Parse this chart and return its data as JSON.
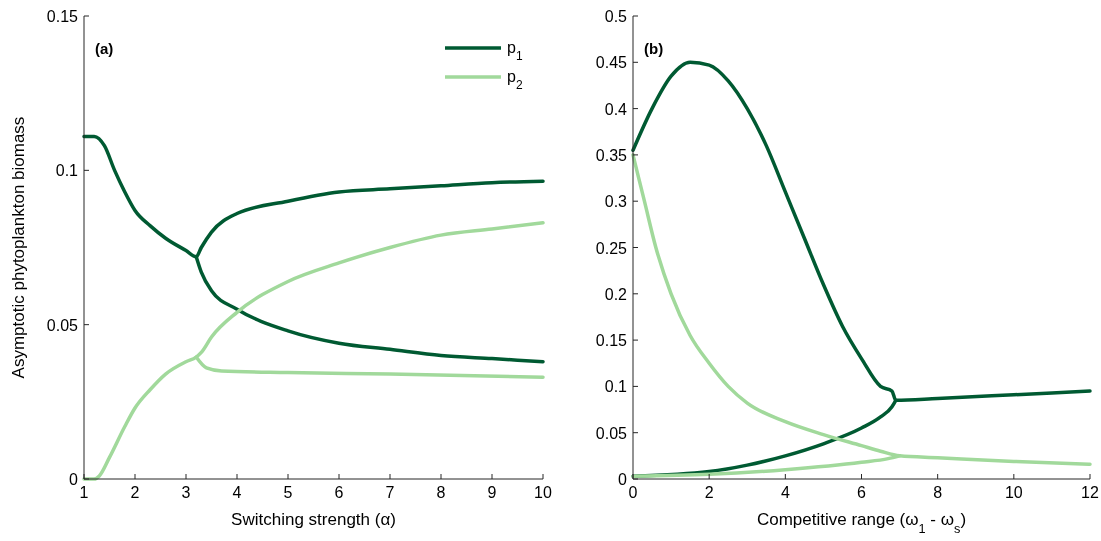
{
  "chart_data": [
    {
      "type": "line",
      "ylabel": "Asymptotic phytoplankton biomass",
      "xlabel": "Switching strength (α)",
      "annotations": [
        "(a)"
      ],
      "xlim": [
        1,
        10
      ],
      "xticks": [
        1,
        2,
        3,
        4,
        5,
        6,
        7,
        8,
        9,
        10
      ],
      "ylim": [
        0,
        0.15
      ],
      "yticks": [
        0,
        0.05,
        0.1,
        0.15
      ],
      "legend": "top right",
      "grid": false,
      "series": [
        {
          "name": "p$_{1}$",
          "color": "#005a32",
          "x": [
            1,
            1.2,
            1.4,
            1.6,
            1.8,
            2,
            2.3,
            2.6,
            3,
            3.2,
            3.3,
            3.5,
            4,
            5,
            6,
            7,
            8,
            9,
            10
          ],
          "values": [
            0.111,
            0.111,
            0.108,
            0.1,
            0.093,
            0.087,
            0.082,
            0.078,
            0.074,
            0.072,
            0.075,
            0.08,
            0.086,
            0.09,
            0.093,
            0.094,
            0.095,
            0.096,
            0.0965
          ]
        },
        {
          "color": "#005a32",
          "x": [
            3.2,
            3.3,
            3.5,
            4,
            5,
            6,
            7,
            8,
            9,
            10
          ],
          "values": [
            0.072,
            0.067,
            0.061,
            0.055,
            0.048,
            0.044,
            0.042,
            0.04,
            0.039,
            0.038
          ]
        },
        {
          "name": "p$_{2}$",
          "color": "#a1d99b",
          "x": [
            1,
            1.2,
            1.3,
            1.5,
            1.8,
            2,
            2.3,
            2.6,
            3,
            3.2,
            3.3,
            3.5,
            4,
            5,
            6,
            7,
            8,
            9,
            10
          ],
          "values": [
            0,
            0,
            0.001,
            0.007,
            0.017,
            0.023,
            0.029,
            0.034,
            0.038,
            0.0395,
            0.041,
            0.046,
            0.054,
            0.064,
            0.07,
            0.075,
            0.079,
            0.081,
            0.083
          ]
        },
        {
          "color": "#a1d99b",
          "x": [
            3.2,
            3.4,
            3.7,
            5,
            7,
            10
          ],
          "values": [
            0.0395,
            0.036,
            0.035,
            0.0345,
            0.034,
            0.033
          ]
        }
      ]
    },
    {
      "type": "line",
      "xlabel": "Competitive range (ω$_{1}$ - ω$_{s}$)",
      "annotations": [
        "(b)"
      ],
      "xlim": [
        0,
        12
      ],
      "xticks": [
        0,
        2,
        4,
        6,
        8,
        10,
        12
      ],
      "ylim": [
        0,
        0.5
      ],
      "yticks": [
        0,
        0.05,
        0.1,
        0.15,
        0.2,
        0.25,
        0.3,
        0.35,
        0.4,
        0.45,
        0.5
      ],
      "grid": false,
      "series": [
        {
          "color": "#005a32",
          "x": [
            0,
            0.5,
            1,
            1.5,
            2,
            2.5,
            3,
            3.5,
            4,
            4.5,
            5,
            5.5,
            6,
            6.5,
            6.8,
            6.9,
            8,
            10,
            12
          ],
          "values": [
            0.355,
            0.4,
            0.435,
            0.45,
            0.447,
            0.43,
            0.4,
            0.36,
            0.31,
            0.26,
            0.21,
            0.165,
            0.13,
            0.1,
            0.095,
            0.085,
            0.087,
            0.091,
            0.095
          ]
        },
        {
          "color": "#005a32",
          "x": [
            0,
            2,
            3,
            4,
            5,
            6,
            6.5,
            6.8,
            6.9
          ],
          "values": [
            0.003,
            0.008,
            0.015,
            0.025,
            0.038,
            0.055,
            0.067,
            0.078,
            0.085
          ]
        },
        {
          "color": "#a1d99b",
          "x": [
            0,
            0.3,
            0.6,
            1,
            1.5,
            2,
            2.5,
            3,
            4,
            5,
            6,
            6.5,
            7,
            8,
            10,
            12
          ],
          "values": [
            0.35,
            0.3,
            0.25,
            0.2,
            0.155,
            0.125,
            0.1,
            0.082,
            0.062,
            0.048,
            0.036,
            0.03,
            0.025,
            0.023,
            0.019,
            0.016
          ]
        },
        {
          "color": "#a1d99b",
          "x": [
            0,
            2,
            4,
            6,
            6.7,
            7
          ],
          "values": [
            0.003,
            0.005,
            0.01,
            0.018,
            0.022,
            0.025
          ]
        }
      ]
    }
  ]
}
